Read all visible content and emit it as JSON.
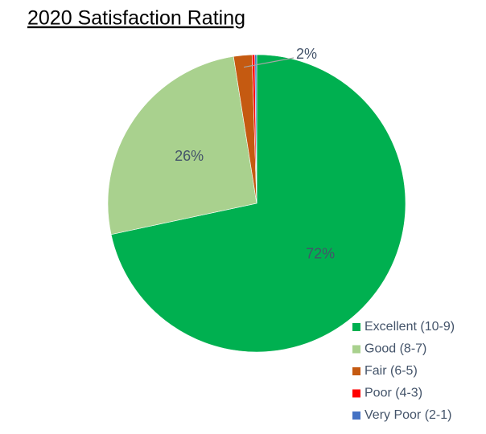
{
  "chart_data": {
    "type": "pie",
    "title": "2020 Satisfaction Rating",
    "categories": [
      "Excellent (10-9)",
      "Good (8-7)",
      "Fair (6-5)",
      "Poor (4-3)",
      "Very Poor (2-1)"
    ],
    "values": [
      72,
      26,
      2,
      0.3,
      0.2
    ],
    "value_labels": [
      "72%",
      "26%",
      "2%",
      null,
      null
    ],
    "colors": [
      "#00b050",
      "#a9d18e",
      "#c55a11",
      "#ff0000",
      "#4472c4"
    ],
    "legend": "bottom-right"
  }
}
